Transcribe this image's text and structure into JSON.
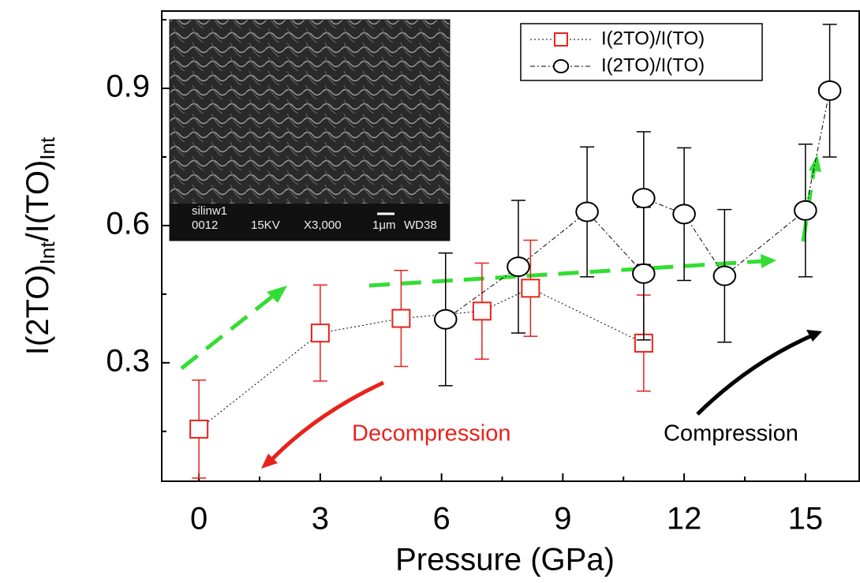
{
  "chart_data": {
    "type": "scatter",
    "xlabel": "Pressure (GPa)",
    "ylabel_parts": [
      "I(2TO)",
      "Int",
      "/I(TO)",
      "Int"
    ],
    "xlim": [
      -0.92,
      16.33
    ],
    "ylim": [
      0.041,
      1.069
    ],
    "xticks": [
      0,
      3,
      6,
      9,
      12,
      15
    ],
    "yticks": [
      0.3,
      0.6,
      0.9
    ],
    "series": [
      {
        "name": "I(2TO)/I(TO)",
        "color": "#e8221b",
        "marker": "square",
        "x": [
          0,
          3,
          5,
          7,
          8.2,
          11
        ],
        "values": [
          0.155,
          0.365,
          0.397,
          0.413,
          0.463,
          0.343
        ],
        "errors": [
          0.107,
          0.105,
          0.105,
          0.105,
          0.105,
          0.105
        ]
      },
      {
        "name": "I(2TO)/I(TO)",
        "color": "#000000",
        "marker": "circle",
        "x": [
          6.1,
          7.9,
          9.6,
          11,
          11,
          12,
          13,
          15,
          15.6
        ],
        "values": [
          0.395,
          0.51,
          0.63,
          0.495,
          0.66,
          0.625,
          0.49,
          0.633,
          0.895
        ],
        "errors": [
          0.145,
          0.145,
          0.142,
          0.145,
          0.145,
          0.145,
          0.145,
          0.145,
          0.145
        ]
      }
    ],
    "annotations": [
      "Decompression",
      "Compression"
    ],
    "inset_text": [
      "silinw1",
      "0012",
      "15KV",
      "X3,000",
      "1μm",
      "WD38"
    ]
  }
}
